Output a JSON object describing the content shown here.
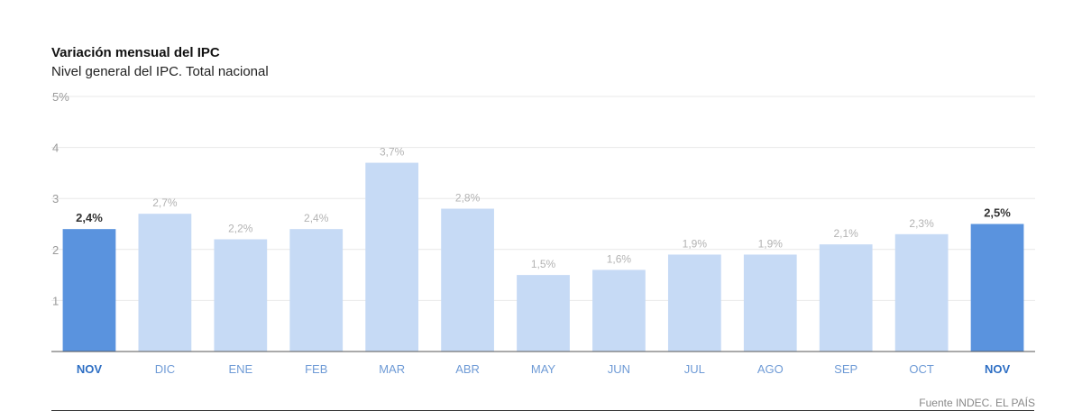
{
  "header": {
    "title": "Variación mensual del IPC",
    "subtitle": "Nivel general del IPC. Total nacional"
  },
  "footer": {
    "source": "Fuente INDEC. EL PAÍS"
  },
  "chart_data": {
    "type": "bar",
    "title": "Variación mensual del IPC",
    "subtitle": "Nivel general del IPC. Total nacional",
    "categories": [
      "NOV",
      "DIC",
      "ENE",
      "FEB",
      "MAR",
      "ABR",
      "MAY",
      "JUN",
      "JUL",
      "AGO",
      "SEP",
      "OCT",
      "NOV"
    ],
    "values": [
      2.4,
      2.7,
      2.2,
      2.4,
      3.7,
      2.8,
      1.5,
      1.6,
      1.9,
      1.9,
      2.1,
      2.3,
      2.5
    ],
    "value_labels": [
      "2,4%",
      "2,7%",
      "2,2%",
      "2,4%",
      "3,7%",
      "2,8%",
      "1,5%",
      "1,6%",
      "1,9%",
      "1,9%",
      "2,1%",
      "2,3%",
      "2,5%"
    ],
    "highlighted": [
      0,
      12
    ],
    "ylim": [
      0,
      5
    ],
    "yticks": [
      1,
      2,
      3,
      4,
      5
    ],
    "ytick_labels": [
      "1",
      "2",
      "3",
      "4",
      "5%"
    ],
    "grid": true,
    "colors": {
      "highlight": "#5a93de",
      "normal": "#c6daf5",
      "grid": "#e8e8e8",
      "axis": "#555555"
    }
  }
}
